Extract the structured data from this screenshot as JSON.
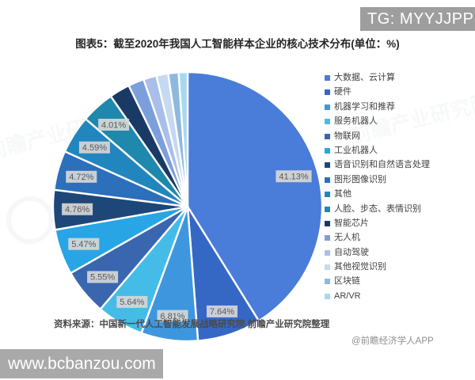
{
  "badge_top_right": {
    "text": "TG: MYYJJPP",
    "bg": "#9e9e9e",
    "color": "#ffffff"
  },
  "title": "图表5：截至2020年我国人工智能样本企业的核心技术分布(单位：%)",
  "source_note": "资料来源：中国新一代人工智能发展战略研究院 前瞻产业研究院整理",
  "credit": "@前瞻经济学人APP",
  "watermark_bottom_left": {
    "text": "www.bcbanzou.com",
    "bg": "#a9a9a9",
    "color": "#ffffff"
  },
  "background_watermark_text": "前瞻产业研究院",
  "chart_data": {
    "type": "pie",
    "title": "图表5：截至2020年我国人工智能样本企业的核心技术分布(单位：%)",
    "unit": "%",
    "direction": "clockwise",
    "start_angle_deg": 0,
    "legend_position": "right",
    "label_box_bg": "#d7d7d7",
    "label_text_color": "#595959",
    "series": [
      {
        "name": "大数据、云计算",
        "value": 41.13,
        "color": "#4a7cd9",
        "labeled": true
      },
      {
        "name": "硬件",
        "value": 7.64,
        "color": "#3568c5",
        "labeled": true
      },
      {
        "name": "机器学习和推荐",
        "value": 6.81,
        "color": "#3e97de",
        "labeled": true
      },
      {
        "name": "服务机器人",
        "value": 5.64,
        "color": "#45bce8",
        "labeled": true
      },
      {
        "name": "物联网",
        "value": 5.55,
        "color": "#3a66b0",
        "labeled": true
      },
      {
        "name": "工业机器人",
        "value": 5.47,
        "color": "#28a5e5",
        "labeled": true
      },
      {
        "name": "语音识别和自然语言处理",
        "value": 4.76,
        "color": "#1d4778",
        "labeled": true
      },
      {
        "name": "图形图像识别",
        "value": 4.72,
        "color": "#2c6fba",
        "labeled": true
      },
      {
        "name": "其他",
        "value": 4.59,
        "color": "#2286be",
        "labeled": true
      },
      {
        "name": "人脸、步态、表情识别",
        "value": 4.01,
        "color": "#1e88ad",
        "labeled": true
      },
      {
        "name": "智能芯片",
        "value": 2.47,
        "color": "#1a3a66",
        "labeled": false
      },
      {
        "name": "无人机",
        "value": 1.91,
        "color": "#7c9fdc",
        "labeled": false
      },
      {
        "name": "自动驾驶",
        "value": 1.57,
        "color": "#a9bfe8",
        "labeled": false
      },
      {
        "name": "其他视觉识别",
        "value": 1.42,
        "color": "#c6d9f1",
        "labeled": false
      },
      {
        "name": "区块链",
        "value": 1.24,
        "color": "#8fb8df",
        "labeled": false
      },
      {
        "name": "AR/VR",
        "value": 1.07,
        "color": "#a8d8f0",
        "labeled": false
      }
    ]
  }
}
